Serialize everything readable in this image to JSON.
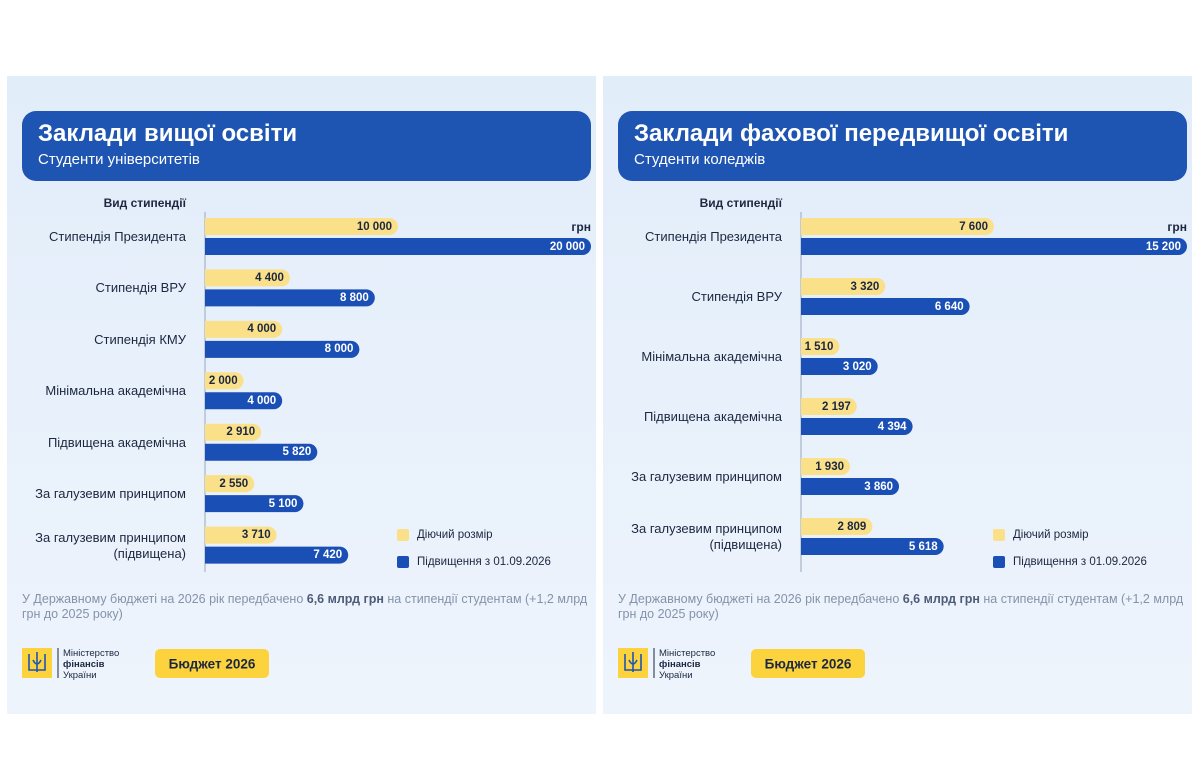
{
  "chart_data": [
    {
      "type": "bar",
      "orientation": "horizontal",
      "title": "Заклади вищої освіти",
      "subtitle": "Студенти університетів",
      "category_axis_title": "Вид стипендії",
      "unit": "грн",
      "categories": [
        "Стипендія Президента",
        "Стипендія ВРУ",
        "Стипендія КМУ",
        "Мінімальна академічна",
        "Підвищена академічна",
        "За галузевим принципом",
        "За галузевим принципом (підвищена)"
      ],
      "series": [
        {
          "name": "Діючий розмір",
          "color": "#fbe08a",
          "values": [
            10000,
            4400,
            4000,
            2000,
            2910,
            2550,
            3710
          ],
          "value_labels": [
            "10 000",
            "4 400",
            "4 000",
            "2 000",
            "2 910",
            "2 550",
            "3 710"
          ]
        },
        {
          "name": "Підвищення з 01.09.2026",
          "color": "#1a4fb5",
          "values": [
            20000,
            8800,
            8000,
            4000,
            5820,
            5100,
            7420
          ],
          "value_labels": [
            "20 000",
            "8 800",
            "8 000",
            "4 000",
            "5 820",
            "5 100",
            "7 420"
          ]
        }
      ],
      "xlim": [
        0,
        20000
      ],
      "legend": "lower right",
      "note": [
        "У Державному бюджеті на 2026 рік передбачено ",
        "6,6 млрд грн",
        " на стипендії студентам (+1,2 млрд грн до 2025 року)"
      ]
    },
    {
      "type": "bar",
      "orientation": "horizontal",
      "title": "Заклади фахової передвищої освіти",
      "subtitle": "Студенти коледжів",
      "category_axis_title": "Вид стипендії",
      "unit": "грн",
      "categories": [
        "Стипендія Президента",
        "Стипендія ВРУ",
        "Мінімальна академічна",
        "Підвищена академічна",
        "За галузевим принципом",
        "За галузевим принципом (підвищена)"
      ],
      "series": [
        {
          "name": "Діючий розмір",
          "color": "#fbe08a",
          "values": [
            7600,
            3320,
            1510,
            2197,
            1930,
            2809
          ],
          "value_labels": [
            "7 600",
            "3 320",
            "1 510",
            "2 197",
            "1 930",
            "2 809"
          ]
        },
        {
          "name": "Підвищення з 01.09.2026",
          "color": "#1a4fb5",
          "values": [
            15200,
            6640,
            3020,
            4394,
            3860,
            5618
          ],
          "value_labels": [
            "15 200",
            "6 640",
            "3 020",
            "4 394",
            "3 860",
            "5 618"
          ]
        }
      ],
      "xlim": [
        0,
        15200
      ],
      "legend": "lower right",
      "note": [
        "У Державному бюджеті на 2026 рік передбачено ",
        "6,6 млрд грн",
        " на стипендії студентам (+1,2 млрд грн до 2025 року)"
      ]
    }
  ],
  "branding": {
    "ministry": [
      "Міністерство",
      "фінансів",
      "України"
    ],
    "button": "Бюджет 2026"
  }
}
